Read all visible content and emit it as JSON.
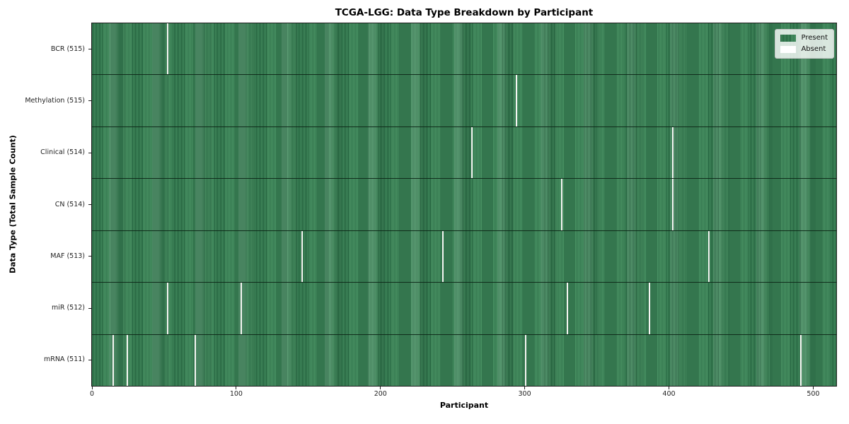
{
  "chart_data": {
    "type": "heatmap",
    "title": "TCGA-LGG: Data Type Breakdown by Participant",
    "xlabel": "Participant",
    "ylabel": "Data Type (Total Sample Count)",
    "n_participants": 516,
    "x_ticks": [
      0,
      100,
      200,
      300,
      400,
      500
    ],
    "legend_position": "upper-right",
    "legend_items": [
      {
        "label": "Present",
        "swatch": "present",
        "color": "#2e7d4c"
      },
      {
        "label": "Absent",
        "swatch": "absent",
        "color": "#ffffff"
      }
    ],
    "colors": {
      "present_fill": "#4a9465",
      "present_cell_edge": "#1d5937",
      "absent_line": "#f5f5f2",
      "row_divider": "#0e2818",
      "axes_border": "#1c1c1c"
    },
    "rows": [
      {
        "label": "BCR (515)",
        "total": 515,
        "absent_participants": [
          52
        ]
      },
      {
        "label": "Methylation (515)",
        "total": 515,
        "absent_participants": [
          294
        ]
      },
      {
        "label": "Clinical (514)",
        "total": 514,
        "absent_participants": [
          263,
          402
        ]
      },
      {
        "label": "CN (514)",
        "total": 514,
        "absent_participants": [
          325,
          402
        ]
      },
      {
        "label": "MAF (513)",
        "total": 513,
        "absent_participants": [
          145,
          243,
          427
        ]
      },
      {
        "label": "miR (512)",
        "total": 512,
        "absent_participants": [
          52,
          103,
          329,
          386
        ]
      },
      {
        "label": "mRNA (511)",
        "total": 511,
        "absent_participants": [
          14,
          24,
          71,
          300,
          491
        ]
      }
    ]
  }
}
